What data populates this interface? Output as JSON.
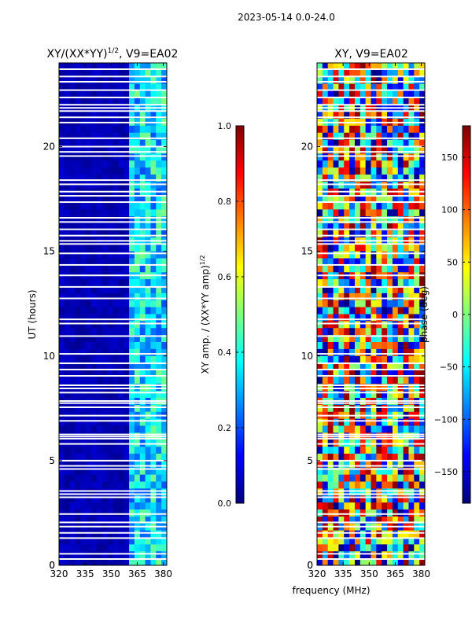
{
  "figure_title": "2023-05-14 0.0-24.0",
  "shared_xlabel": "frequency (MHz)",
  "colors": {
    "jet": [
      "#00007f",
      "#0000ff",
      "#007fff",
      "#00ffff",
      "#7fff7f",
      "#ffff00",
      "#ff7f00",
      "#ff0000",
      "#7f0000"
    ],
    "gap": "#ffffff"
  },
  "chart_data": [
    {
      "type": "heatmap",
      "title": "XY/(XX*YY)^1/2, V9=EA02",
      "title_main": "XY/(XX*YY)",
      "title_exp": "1/2",
      "title_rest": ", V9=EA02",
      "xlabel": "",
      "ylabel": "UT (hours)",
      "xlim": [
        320,
        382
      ],
      "ylim": [
        0,
        24
      ],
      "xticks": [
        320,
        335,
        350,
        365,
        380
      ],
      "yticks": [
        0,
        5,
        10,
        15,
        20
      ],
      "colorbar": {
        "label": "XY amp. / (XX*YY amp)^1/2",
        "label_main": "XY amp. / (XX*YY amp)",
        "label_exp": "1/2",
        "range": [
          0.0,
          1.0
        ],
        "ticks": [
          "0.0",
          "0.2",
          "0.4",
          "0.6",
          "0.8",
          "1.0"
        ],
        "tick_values": [
          0.0,
          0.2,
          0.4,
          0.6,
          0.8,
          1.0
        ]
      },
      "description_values": "amplitude ~0.05 below 360 MHz, ~0.3-0.5 between 362-382 MHz"
    },
    {
      "type": "heatmap",
      "title": "XY, V9=EA02",
      "xlabel": "frequency (MHz)",
      "ylabel": "",
      "xlim": [
        320,
        382
      ],
      "ylim": [
        0,
        24
      ],
      "xticks": [
        320,
        335,
        350,
        365,
        380
      ],
      "yticks": [
        0,
        5,
        10,
        15,
        20
      ],
      "colorbar": {
        "label": "phase (deg)",
        "range": [
          -180,
          180
        ],
        "ticks": [
          "150",
          "100",
          "50",
          "0",
          "−50",
          "−100",
          "−150"
        ],
        "tick_values": [
          150,
          100,
          50,
          0,
          -50,
          -100,
          -150
        ]
      }
    }
  ],
  "flagged_gaps_hours": [
    0.3,
    0.55,
    1.3,
    1.55,
    1.85,
    2.05,
    2.45,
    3.25,
    3.4,
    3.55,
    4.6,
    4.75,
    5.0,
    5.8,
    6.05,
    6.15,
    6.25,
    6.9,
    7.15,
    7.55,
    7.75,
    7.85,
    8.25,
    8.45,
    8.6,
    9.05,
    9.35,
    9.65,
    10.1,
    10.95,
    11.55,
    11.75,
    12.75,
    13.3,
    13.85,
    14.35,
    14.9,
    15.35,
    15.5,
    15.75,
    16.05,
    16.4,
    16.6,
    17.35,
    17.65,
    17.85,
    18.2,
    18.4,
    19.55,
    19.75,
    20.0,
    20.4,
    21.15,
    21.4,
    21.7,
    21.85,
    22.0,
    22.35,
    22.7,
    23.1,
    23.35,
    23.7
  ]
}
